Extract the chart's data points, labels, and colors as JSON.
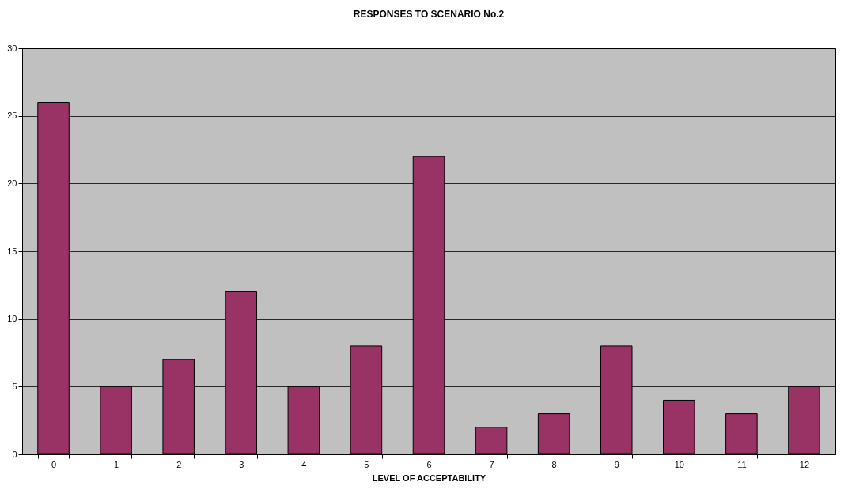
{
  "chart_data": {
    "type": "bar",
    "title": "RESPONSES TO SCENARIO No.2",
    "xlabel": "LEVEL OF ACCEPTABILITY",
    "categories": [
      "0",
      "1",
      "2",
      "3",
      "4",
      "5",
      "6",
      "7",
      "8",
      "9",
      "10",
      "11",
      "12"
    ],
    "values": [
      26,
      5,
      7,
      12,
      5,
      8,
      22,
      2,
      3,
      8,
      4,
      3,
      5
    ],
    "color": "#993366",
    "ylim": [
      0,
      30
    ],
    "yticks": [
      0,
      5,
      10,
      15,
      20,
      25,
      30
    ],
    "grid": "y"
  }
}
